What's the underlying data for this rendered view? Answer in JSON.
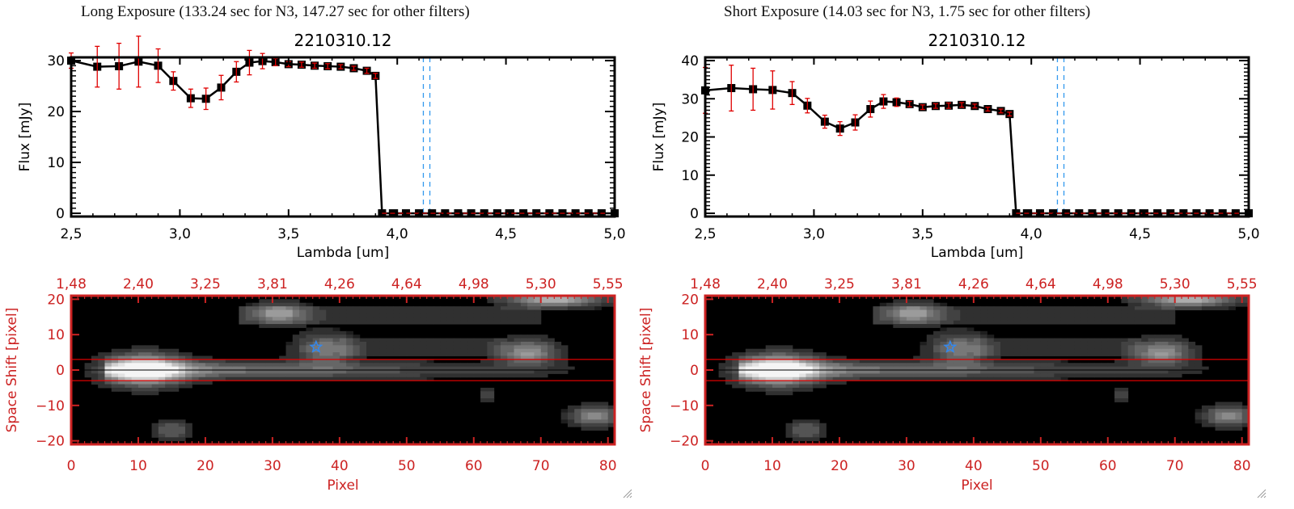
{
  "panels": [
    {
      "title": "Long Exposure (133.24 sec for N3, 147.27 sec for other filters)",
      "subtitle": "2210310.12"
    },
    {
      "title": "Short Exposure (14.03 sec for N3, 1.75 sec for other filters)",
      "subtitle": "2210310.12"
    }
  ],
  "colors": {
    "axis_black": "#000000",
    "errorbar_red": "#e00000",
    "axis_red": "#cc2222",
    "dashed_blue": "#3399ee",
    "zero_line_red": "#dd0000",
    "star_blue": "#3388ee"
  },
  "chart_data": [
    {
      "type": "line",
      "panel": 0,
      "title": "2210310.12",
      "xlabel": "Lambda [um]",
      "ylabel": "Flux [mJy]",
      "xlim": [
        2.5,
        5.0
      ],
      "ylim": [
        0,
        30
      ],
      "xticks": [
        "2.5",
        "3.0",
        "3.5",
        "4.0",
        "4.5",
        "5.0"
      ],
      "xtick_values": [
        2.5,
        3.0,
        3.5,
        4.0,
        4.5,
        5.0
      ],
      "yticks": [
        "0",
        "10",
        "20",
        "30"
      ],
      "ytick_values": [
        0,
        10,
        20,
        30
      ],
      "vlines_dashed": [
        4.12,
        4.15
      ],
      "hline_dashed": 0,
      "x": [
        2.5,
        2.62,
        2.72,
        2.81,
        2.9,
        2.97,
        3.05,
        3.12,
        3.19,
        3.26,
        3.32,
        3.38,
        3.44,
        3.5,
        3.56,
        3.62,
        3.68,
        3.74,
        3.8,
        3.86,
        3.9,
        3.93,
        3.98,
        4.04,
        4.1,
        4.16,
        4.22,
        4.28,
        4.34,
        4.4,
        4.46,
        4.52,
        4.58,
        4.64,
        4.7,
        4.76,
        4.82,
        4.88,
        4.94,
        5.0
      ],
      "y": [
        30.0,
        28.8,
        28.9,
        29.8,
        29.0,
        26.0,
        22.6,
        22.5,
        24.7,
        27.8,
        29.6,
        29.9,
        29.7,
        29.3,
        29.2,
        29.0,
        28.9,
        28.8,
        28.5,
        28.0,
        27.0,
        0,
        0,
        0,
        0,
        0,
        0,
        0,
        0,
        0,
        0,
        0,
        0,
        0,
        0,
        0,
        0,
        0,
        0,
        0
      ],
      "yerr": [
        1.5,
        4.0,
        4.5,
        5.0,
        3.3,
        1.8,
        1.8,
        2.1,
        2.4,
        2.0,
        2.4,
        1.5,
        0.7,
        0.5,
        0.5,
        0.5,
        0.5,
        0.4,
        0.4,
        0.5,
        0.5,
        0,
        0,
        0,
        0,
        0,
        0,
        0,
        0,
        0,
        0,
        0,
        0,
        0,
        0,
        0,
        0,
        0,
        0,
        0
      ]
    },
    {
      "type": "line",
      "panel": 1,
      "title": "2210310.12",
      "xlabel": "Lambda [um]",
      "ylabel": "Flux [mJy]",
      "xlim": [
        2.5,
        5.0
      ],
      "ylim": [
        0,
        40
      ],
      "xticks": [
        "2.5",
        "3.0",
        "3.5",
        "4.0",
        "4.5",
        "5.0"
      ],
      "xtick_values": [
        2.5,
        3.0,
        3.5,
        4.0,
        4.5,
        5.0
      ],
      "yticks": [
        "0",
        "10",
        "20",
        "30",
        "40"
      ],
      "ytick_values": [
        0,
        10,
        20,
        30,
        40
      ],
      "vlines_dashed": [
        4.12,
        4.15
      ],
      "hline_dashed": 0,
      "x": [
        2.5,
        2.62,
        2.72,
        2.81,
        2.9,
        2.97,
        3.05,
        3.12,
        3.19,
        3.26,
        3.32,
        3.38,
        3.44,
        3.5,
        3.56,
        3.62,
        3.68,
        3.74,
        3.8,
        3.86,
        3.9,
        3.93,
        3.98,
        4.04,
        4.1,
        4.16,
        4.22,
        4.28,
        4.34,
        4.4,
        4.46,
        4.52,
        4.58,
        4.64,
        4.7,
        4.76,
        4.82,
        4.88,
        4.94,
        5.0
      ],
      "y": [
        32.2,
        32.8,
        32.5,
        32.3,
        31.5,
        28.2,
        24.0,
        22.2,
        23.8,
        27.3,
        29.3,
        29.1,
        28.6,
        27.8,
        28.1,
        28.2,
        28.4,
        28.1,
        27.3,
        26.8,
        26.0,
        0,
        0,
        0,
        0,
        0,
        0,
        0,
        0,
        0,
        0,
        0,
        0,
        0,
        0,
        0,
        0,
        0,
        0,
        0
      ],
      "yerr": [
        6.0,
        6.0,
        5.5,
        5.0,
        3.0,
        1.9,
        1.7,
        1.8,
        2.0,
        2.1,
        1.8,
        1.1,
        0.7,
        0.6,
        0.6,
        0.7,
        0.6,
        0.5,
        0.5,
        0.5,
        0.5,
        0,
        0,
        0,
        0,
        0,
        0,
        0,
        0,
        0,
        0,
        0,
        0,
        0,
        0,
        0,
        0,
        0,
        0,
        0
      ]
    },
    {
      "type": "heatmap",
      "panel": 0,
      "xlabel": "Pixel",
      "ylabel": "Space Shift [pixel]",
      "xlim": [
        0,
        81
      ],
      "ylim": [
        -21,
        21
      ],
      "xticks": [
        "0",
        "10",
        "20",
        "30",
        "40",
        "50",
        "60",
        "70",
        "80"
      ],
      "xtick_values": [
        0,
        10,
        20,
        30,
        40,
        50,
        60,
        70,
        80
      ],
      "yticks": [
        "-20",
        "-10",
        "0",
        "10",
        "20"
      ],
      "ytick_values": [
        -20,
        -10,
        0,
        10,
        20
      ],
      "top_xticks": [
        "1.48",
        "2.40",
        "3.25",
        "3.81",
        "4.26",
        "4.64",
        "4.98",
        "5.30",
        "5.55"
      ],
      "top_xtick_values": [
        0,
        10,
        20,
        30,
        40,
        50,
        60,
        70,
        80
      ],
      "aperture_lines": [
        3,
        -3
      ],
      "center_line": 0,
      "star_marker": {
        "x": 36.5,
        "y": 6.5
      },
      "sources": [
        {
          "x": 11,
          "y": 0,
          "peak": 1.0,
          "sx": 4,
          "sy": 3
        },
        {
          "x": 31,
          "y": 16,
          "peak": 0.55,
          "sx": 3,
          "sy": 2
        },
        {
          "x": 72,
          "y": 20,
          "peak": 0.75,
          "sx": 5,
          "sy": 1.5
        },
        {
          "x": 68,
          "y": 5,
          "peak": 0.6,
          "sx": 3,
          "sy": 2.5
        },
        {
          "x": 38,
          "y": 6,
          "peak": 0.5,
          "sx": 3,
          "sy": 3
        },
        {
          "x": 15,
          "y": -17,
          "peak": 0.35,
          "sx": 2,
          "sy": 2
        },
        {
          "x": 78,
          "y": -13,
          "peak": 0.55,
          "sx": 2.5,
          "sy": 2
        },
        {
          "x": 62,
          "y": -7,
          "peak": 0.25,
          "sx": 1,
          "sy": 1.5
        }
      ]
    },
    {
      "type": "heatmap",
      "panel": 1,
      "xlabel": "Pixel",
      "ylabel": "Space Shift [pixel]",
      "xlim": [
        0,
        81
      ],
      "ylim": [
        -21,
        21
      ],
      "xticks": [
        "0",
        "10",
        "20",
        "30",
        "40",
        "50",
        "60",
        "70",
        "80"
      ],
      "xtick_values": [
        0,
        10,
        20,
        30,
        40,
        50,
        60,
        70,
        80
      ],
      "yticks": [
        "-20",
        "-10",
        "0",
        "10",
        "20"
      ],
      "ytick_values": [
        -20,
        -10,
        0,
        10,
        20
      ],
      "top_xticks": [
        "1.48",
        "2.40",
        "3.25",
        "3.81",
        "4.26",
        "4.64",
        "4.98",
        "5.30",
        "5.55"
      ],
      "top_xtick_values": [
        0,
        10,
        20,
        30,
        40,
        50,
        60,
        70,
        80
      ],
      "aperture_lines": [
        3,
        -3
      ],
      "center_line": 0,
      "star_marker": {
        "x": 36.5,
        "y": 6.5
      },
      "sources": [
        {
          "x": 11,
          "y": 0,
          "peak": 1.0,
          "sx": 4,
          "sy": 3
        },
        {
          "x": 31,
          "y": 16,
          "peak": 0.55,
          "sx": 3,
          "sy": 2
        },
        {
          "x": 72,
          "y": 20,
          "peak": 0.75,
          "sx": 5,
          "sy": 1.5
        },
        {
          "x": 68,
          "y": 5,
          "peak": 0.6,
          "sx": 3,
          "sy": 2.5
        },
        {
          "x": 38,
          "y": 6,
          "peak": 0.5,
          "sx": 3,
          "sy": 3
        },
        {
          "x": 15,
          "y": -17,
          "peak": 0.35,
          "sx": 2,
          "sy": 2
        },
        {
          "x": 78,
          "y": -13,
          "peak": 0.55,
          "sx": 2.5,
          "sy": 2
        },
        {
          "x": 62,
          "y": -7,
          "peak": 0.25,
          "sx": 1,
          "sy": 1.5
        }
      ]
    }
  ]
}
